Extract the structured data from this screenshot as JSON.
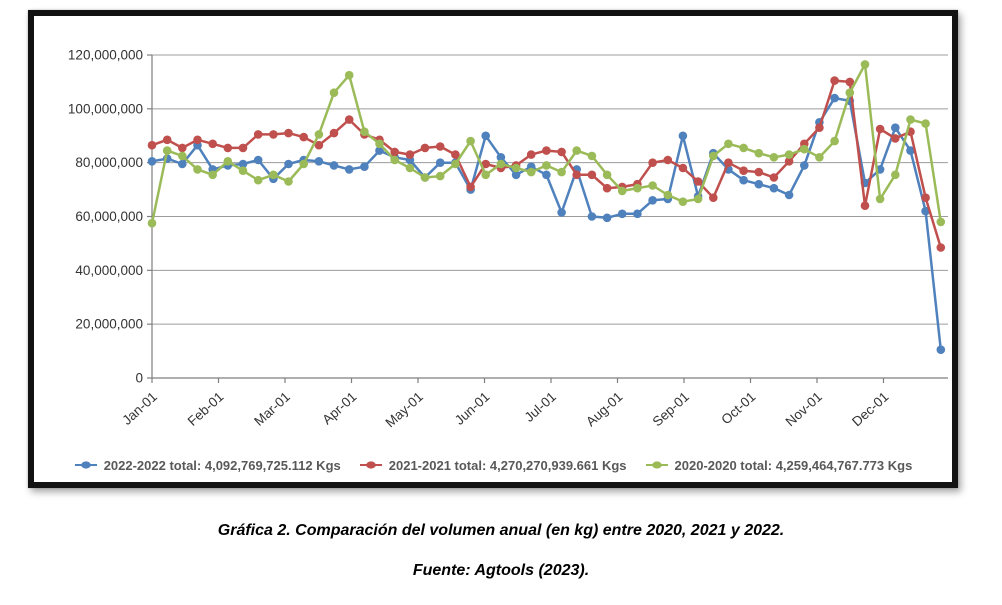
{
  "chart_data": {
    "type": "line",
    "title": "",
    "grid": true,
    "legend_position": "bottom",
    "x_axis": {
      "tick_labels": [
        "Jan-01",
        "Feb-01",
        "Mar-01",
        "Apr-01",
        "May-01",
        "Jun-01",
        "Jul-01",
        "Aug-01",
        "Sep-01",
        "Oct-01",
        "Nov-01",
        "Dec-01"
      ],
      "frequency": "weekly",
      "points_per_series": 53
    },
    "y_axis": {
      "min": 0,
      "max": 120000000,
      "tick_step": 20000000,
      "tick_labels": [
        "0",
        "20,000,000",
        "40,000,000",
        "60,000,000",
        "80,000,000",
        "100,000,000",
        "120,000,000"
      ],
      "unit": "Kgs"
    },
    "series": [
      {
        "name": "2022-2022 total: 4,092,769,725.112 Kgs",
        "color": "#4F81BD",
        "values_millions_kg": [
          80.5,
          81.5,
          79.5,
          86.5,
          77.5,
          79,
          79.5,
          81,
          74,
          79.5,
          81,
          80.5,
          79,
          77.5,
          78.5,
          84.5,
          82,
          81,
          74.5,
          80,
          80,
          70,
          90,
          82,
          75.5,
          78.5,
          75.5,
          61.5,
          77.5,
          60,
          59.5,
          61,
          61,
          66,
          66.5,
          90,
          67.5,
          83.5,
          77.5,
          73.5,
          72,
          70.5,
          68,
          79,
          95,
          104,
          103,
          72.5,
          77.5,
          93,
          84.5,
          62,
          10.5
        ]
      },
      {
        "name": "2021-2021 total: 4,270,270,939.661 Kgs",
        "color": "#C0504D",
        "values_millions_kg": [
          86.5,
          88.5,
          85.5,
          88.5,
          87,
          85.5,
          85.5,
          90.5,
          90.5,
          91,
          89.5,
          86.5,
          91,
          96,
          90.5,
          88.5,
          84,
          83,
          85.5,
          86,
          83,
          71,
          79.5,
          78,
          79,
          83,
          84.5,
          84,
          75.5,
          75.5,
          70.5,
          71,
          72,
          80,
          81,
          78,
          73,
          67,
          80,
          77,
          76.5,
          74.5,
          80.5,
          87,
          93,
          110.5,
          110,
          64,
          92.5,
          89,
          91.5,
          67,
          48.5
        ]
      },
      {
        "name": "2020-2020 total: 4,259,464,767.773 Kgs",
        "color": "#9BBB59",
        "values_millions_kg": [
          57.5,
          84.5,
          82.5,
          77.5,
          75.5,
          80.5,
          77,
          73.5,
          75.5,
          73,
          79.5,
          90.5,
          106,
          112.5,
          91.5,
          87,
          81,
          78,
          74.5,
          75,
          79.5,
          88,
          75.5,
          79.5,
          78,
          76.5,
          79,
          76.5,
          84.5,
          82.5,
          75.5,
          69.5,
          70.5,
          71.5,
          68,
          65.5,
          66.5,
          82.5,
          87,
          85.5,
          83.5,
          82,
          83,
          85,
          82,
          88,
          106,
          116.5,
          66.5,
          75.5,
          96,
          94.5,
          58
        ]
      }
    ],
    "style": {
      "gridline_color": "#9c9c9c",
      "axis_color": "#7f7f7f",
      "tick_label_color": "#333333",
      "legend_text_color": "#595959",
      "plot_background": "#ffffff"
    }
  },
  "caption": {
    "line1": "Gráfica 2. Comparación del volumen anual (en kg) entre 2020, 2021 y 2022.",
    "line2": "Fuente: Agtools (2023)."
  }
}
